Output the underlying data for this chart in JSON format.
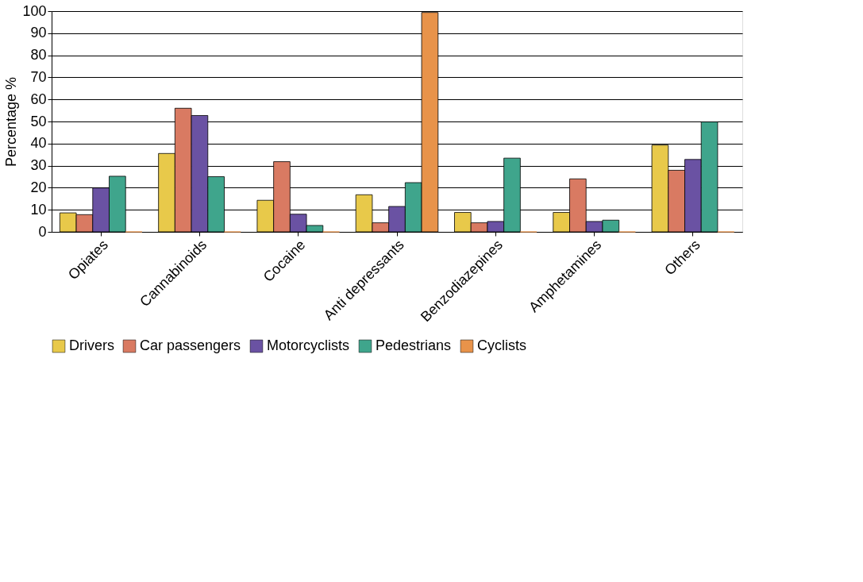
{
  "chart_data": {
    "type": "bar",
    "ylabel": "Percentage %",
    "categories": [
      "Opiates",
      "Cannabinoids",
      "Cocaine",
      "Anti depressants",
      "Benzodiazepines",
      "Amphetamines",
      "Others"
    ],
    "series": [
      {
        "name": "Drivers",
        "color": "#e8c94a",
        "values": [
          8.6,
          35.5,
          14.3,
          16.8,
          8.8,
          8.8,
          39.3
        ]
      },
      {
        "name": "Car passengers",
        "color": "#d97a62",
        "values": [
          7.8,
          56,
          31.8,
          4.1,
          4.1,
          24,
          27.9
        ]
      },
      {
        "name": "Motorcyclists",
        "color": "#6a52a3",
        "values": [
          19.9,
          52.7,
          8,
          11.5,
          4.7,
          4.7,
          32.8
        ]
      },
      {
        "name": "Pedestrians",
        "color": "#3fa58c",
        "values": [
          25.2,
          25,
          2.9,
          22.3,
          33.4,
          5.3,
          49.8
        ]
      },
      {
        "name": "Cyclists",
        "color": "#e8934a",
        "values": [
          0,
          0,
          0,
          99.4,
          0,
          0,
          0
        ]
      }
    ],
    "ylim": [
      0,
      100
    ],
    "yticks": [
      0,
      10,
      20,
      30,
      40,
      50,
      60,
      70,
      80,
      90,
      100
    ],
    "grid": "y",
    "legend": "bottom"
  }
}
